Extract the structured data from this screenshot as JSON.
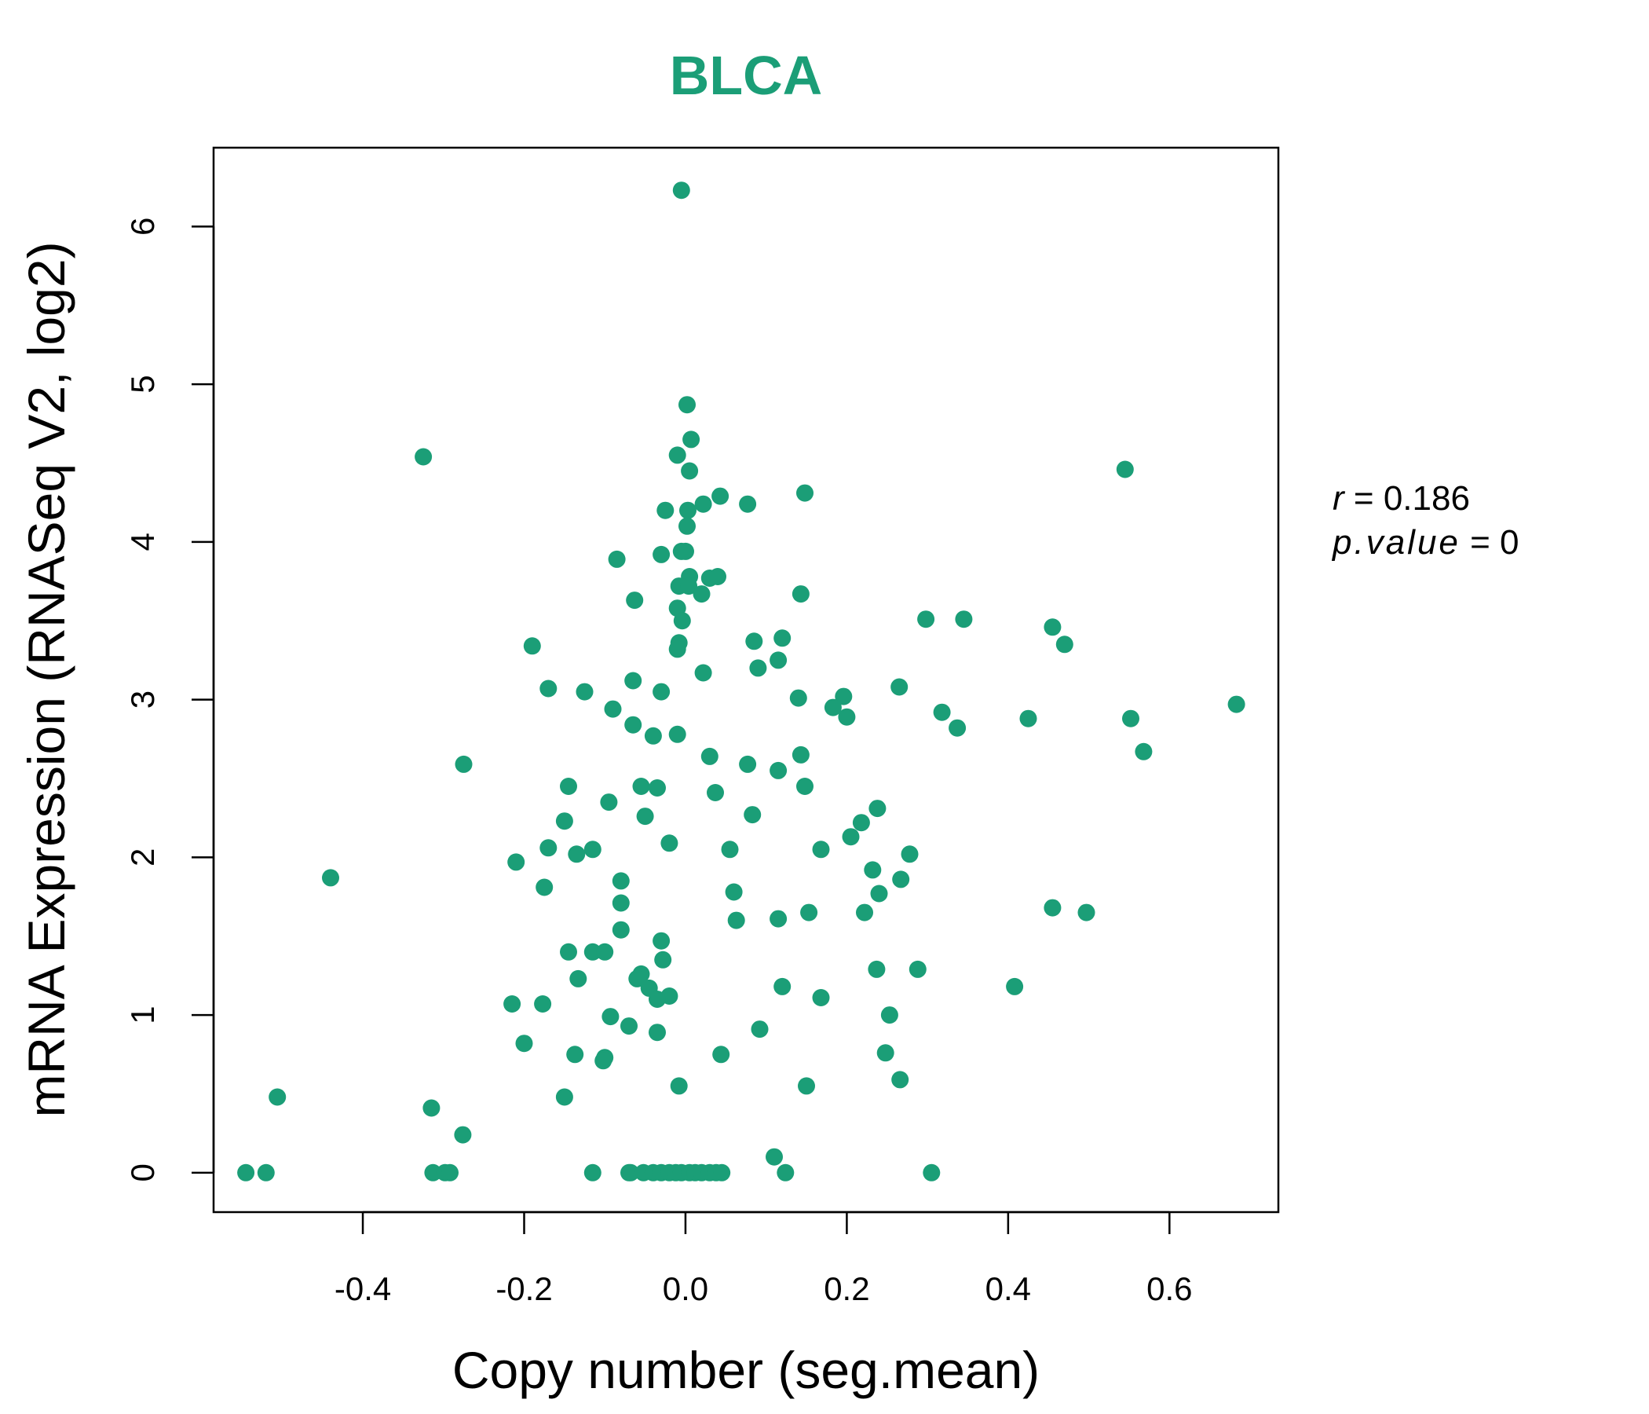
{
  "chart_data": {
    "type": "scatter",
    "title": "BLCA",
    "xlabel": "Copy number (seg.mean)",
    "ylabel": "mRNA Expression (RNASeq V2, log2)",
    "xlim": [
      -0.585,
      0.735
    ],
    "ylim": [
      -0.25,
      6.5
    ],
    "xticks": [
      -0.4,
      -0.2,
      0.0,
      0.2,
      0.4,
      0.6
    ],
    "xtick_labels": [
      "-0.4",
      "-0.2",
      "0.0",
      "0.2",
      "0.4",
      "0.6"
    ],
    "yticks": [
      0,
      1,
      2,
      3,
      4,
      5,
      6
    ],
    "ytick_labels": [
      "0",
      "1",
      "2",
      "3",
      "4",
      "5",
      "6"
    ],
    "grid": false,
    "color": "#1b9e77",
    "stats": {
      "r_label": "r",
      "r_value": "0.186",
      "p_label": "p.value",
      "p_value": "0"
    },
    "x": [
      -0.005,
      0.002,
      0.007,
      0.005,
      -0.01,
      0.003,
      -0.325,
      0.545,
      0.148,
      0.043,
      0.077,
      -0.025,
      0.022,
      0.002,
      -0.005,
      0.0,
      -0.03,
      0.005,
      -0.085,
      -0.008,
      0.004,
      0.03,
      0.04,
      -0.01,
      0.143,
      -0.063,
      0.02,
      -0.004,
      -0.008,
      0.298,
      0.345,
      0.455,
      0.47,
      -0.19,
      0.085,
      0.12,
      -0.01,
      0.115,
      0.09,
      -0.17,
      -0.125,
      -0.065,
      0.265,
      0.196,
      0.14,
      0.022,
      0.183,
      0.2,
      -0.09,
      0.318,
      0.337,
      0.425,
      0.552,
      0.683,
      0.568,
      -0.275,
      -0.065,
      -0.04,
      -0.01,
      -0.03,
      0.03,
      0.143,
      0.115,
      0.077,
      -0.145,
      -0.095,
      0.148,
      -0.055,
      -0.035,
      0.037,
      0.238,
      0.218,
      0.083,
      -0.05,
      -0.15,
      0.205,
      -0.17,
      -0.135,
      -0.115,
      0.278,
      -0.21,
      -0.02,
      0.055,
      0.232,
      0.168,
      0.267,
      0.24,
      -0.44,
      -0.175,
      -0.08,
      -0.08,
      0.222,
      0.153,
      0.455,
      0.497,
      0.115,
      0.063,
      0.06,
      -0.08,
      -0.03,
      -0.145,
      -0.115,
      -0.1,
      -0.028,
      -0.055,
      -0.06,
      0.237,
      0.288,
      -0.133,
      -0.045,
      -0.02,
      -0.035,
      0.12,
      0.408,
      0.168,
      -0.215,
      -0.177,
      -0.093,
      0.253,
      -0.07,
      0.092,
      -0.035,
      -0.2,
      -0.137,
      -0.1,
      0.044,
      0.248,
      -0.102,
      -0.008,
      0.266,
      0.15,
      -0.15,
      -0.506,
      -0.315,
      -0.276,
      0.11,
      -0.545,
      -0.52,
      -0.313,
      -0.298,
      -0.292,
      -0.115,
      -0.07,
      -0.068,
      -0.052,
      -0.04,
      -0.03,
      -0.02,
      -0.012,
      -0.005,
      0.005,
      0.012,
      0.02,
      0.03,
      0.038,
      0.045,
      0.124,
      0.305
    ],
    "y": [
      6.23,
      4.87,
      4.65,
      4.45,
      4.55,
      4.2,
      4.54,
      4.46,
      4.31,
      4.29,
      4.24,
      4.2,
      4.24,
      4.1,
      3.94,
      3.94,
      3.92,
      3.78,
      3.89,
      3.72,
      3.72,
      3.77,
      3.78,
      3.58,
      3.67,
      3.63,
      3.67,
      3.5,
      3.36,
      3.51,
      3.51,
      3.46,
      3.35,
      3.34,
      3.37,
      3.39,
      3.32,
      3.25,
      3.2,
      3.07,
      3.05,
      3.12,
      3.08,
      3.02,
      3.01,
      3.17,
      2.95,
      2.89,
      2.94,
      2.92,
      2.82,
      2.88,
      2.88,
      2.97,
      2.67,
      2.59,
      2.84,
      2.77,
      2.78,
      3.05,
      2.64,
      2.65,
      2.55,
      2.59,
      2.45,
      2.35,
      2.45,
      2.45,
      2.44,
      2.41,
      2.31,
      2.22,
      2.27,
      2.26,
      2.23,
      2.13,
      2.06,
      2.02,
      2.05,
      2.02,
      1.97,
      2.09,
      2.05,
      1.92,
      2.05,
      1.86,
      1.77,
      1.87,
      1.81,
      1.85,
      1.71,
      1.65,
      1.65,
      1.68,
      1.65,
      1.61,
      1.6,
      1.78,
      1.54,
      1.47,
      1.4,
      1.4,
      1.4,
      1.35,
      1.26,
      1.23,
      1.29,
      1.29,
      1.23,
      1.17,
      1.12,
      1.1,
      1.18,
      1.18,
      1.11,
      1.07,
      1.07,
      0.99,
      1.0,
      0.93,
      0.91,
      0.89,
      0.82,
      0.75,
      0.73,
      0.75,
      0.76,
      0.71,
      0.55,
      0.59,
      0.55,
      0.48,
      0.48,
      0.41,
      0.24,
      0.1,
      0.0,
      0.0,
      0.0,
      0.0,
      0.0,
      0.0,
      0.0,
      0.0,
      0.0,
      0.0,
      0.0,
      0.0,
      0.0,
      0.0,
      0.0,
      0.0,
      0.0,
      0.0,
      0.0,
      0.0,
      0.0,
      0.0
    ]
  }
}
